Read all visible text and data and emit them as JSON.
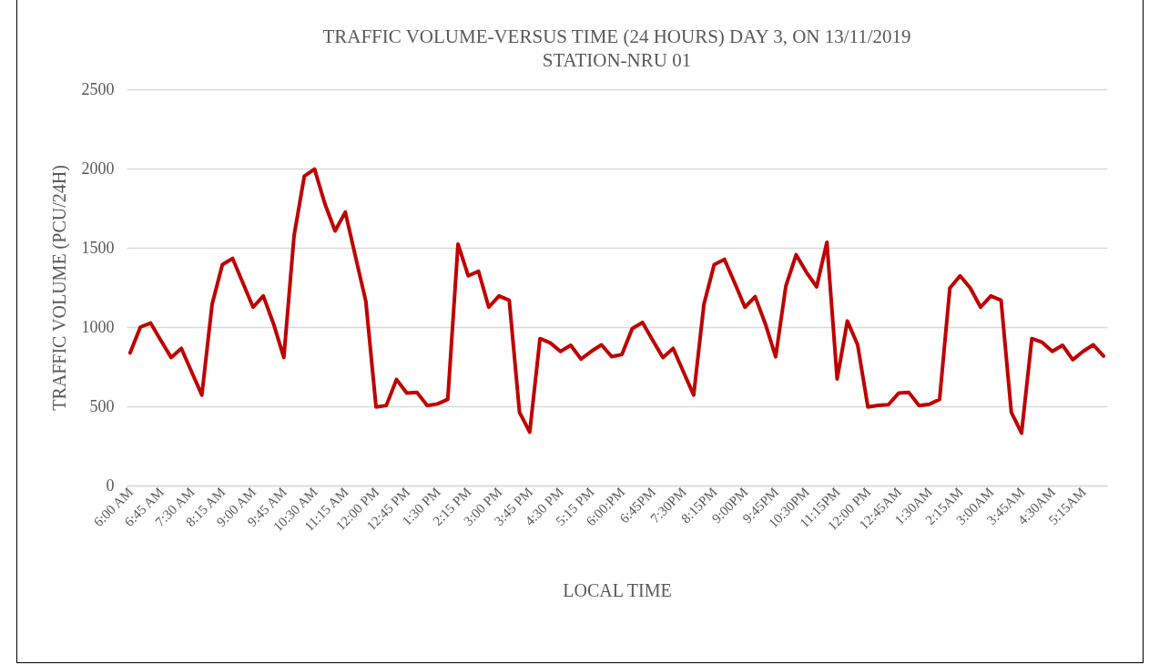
{
  "chart_data": {
    "type": "line",
    "title": [
      "TRAFFIC VOLUME-VERSUS TIME (24 HOURS) DAY 3, ON 13/11/2019",
      "STATION-NRU 01"
    ],
    "xlabel": "LOCAL TIME",
    "ylabel": "TRAFFIC VOLUME (PCU/24H)",
    "categories": [
      "6:00 AM",
      null,
      null,
      "6:45 AM",
      null,
      null,
      "7:30 AM",
      null,
      null,
      "8:15 AM",
      null,
      null,
      "9:00 AM",
      null,
      null,
      "9:45 AM",
      null,
      null,
      "10:30 AM",
      null,
      null,
      "11:15 AM",
      null,
      null,
      "12:00 PM",
      null,
      null,
      "12:45 PM",
      null,
      null,
      "1:30 PM",
      null,
      null,
      "2:15 PM",
      null,
      null,
      "3:00 PM",
      null,
      null,
      "3:45 PM",
      null,
      null,
      "4:30 PM",
      null,
      null,
      "5:15 PM",
      null,
      null,
      "6:00:PM",
      null,
      null,
      "6:45PM",
      null,
      null,
      "7:30PM",
      null,
      null,
      "8:15PM",
      null,
      null,
      "9:00PM",
      null,
      null,
      "9:45PM",
      null,
      null,
      "10:30PM",
      null,
      null,
      "11:15PM",
      null,
      null,
      "12:00 PM",
      null,
      null,
      "12:45AM",
      null,
      null,
      "1:30AM",
      null,
      null,
      "2:15AM",
      null,
      null,
      "3:00AM",
      null,
      null,
      "3:45AM",
      null,
      null,
      "4:30AM",
      null,
      null,
      "5:15AM",
      null,
      null
    ],
    "series": [
      {
        "color": "#c00000",
        "values": [
          837,
          1000,
          1025,
          915,
          808,
          865,
          717,
          571,
          1144,
          1394,
          1433,
          1279,
          1125,
          1196,
          1019,
          808,
          1577,
          1952,
          1996,
          1779,
          1606,
          1725,
          1442,
          1163,
          496,
          505,
          669,
          583,
          587,
          504,
          515,
          544,
          1523,
          1323,
          1352,
          1125,
          1196,
          1169,
          462,
          337,
          927,
          900,
          846,
          885,
          798,
          846,
          888,
          813,
          827,
          990,
          1029,
          917,
          808,
          865,
          717,
          571,
          1144,
          1394,
          1427,
          1279,
          1125,
          1192,
          1019,
          812,
          1260,
          1456,
          1346,
          1254,
          1535,
          673,
          1038,
          888,
          496,
          506,
          510,
          583,
          587,
          504,
          513,
          544,
          1246,
          1323,
          1246,
          1125,
          1196,
          1169,
          462,
          331,
          927,
          904,
          846,
          885,
          794,
          846,
          888,
          817
        ]
      }
    ],
    "ylim": [
      0,
      2500
    ],
    "yticks": [
      0,
      500,
      1000,
      1500,
      2000,
      2500
    ],
    "grid": "y",
    "marker": "none",
    "line_style": "solid"
  }
}
